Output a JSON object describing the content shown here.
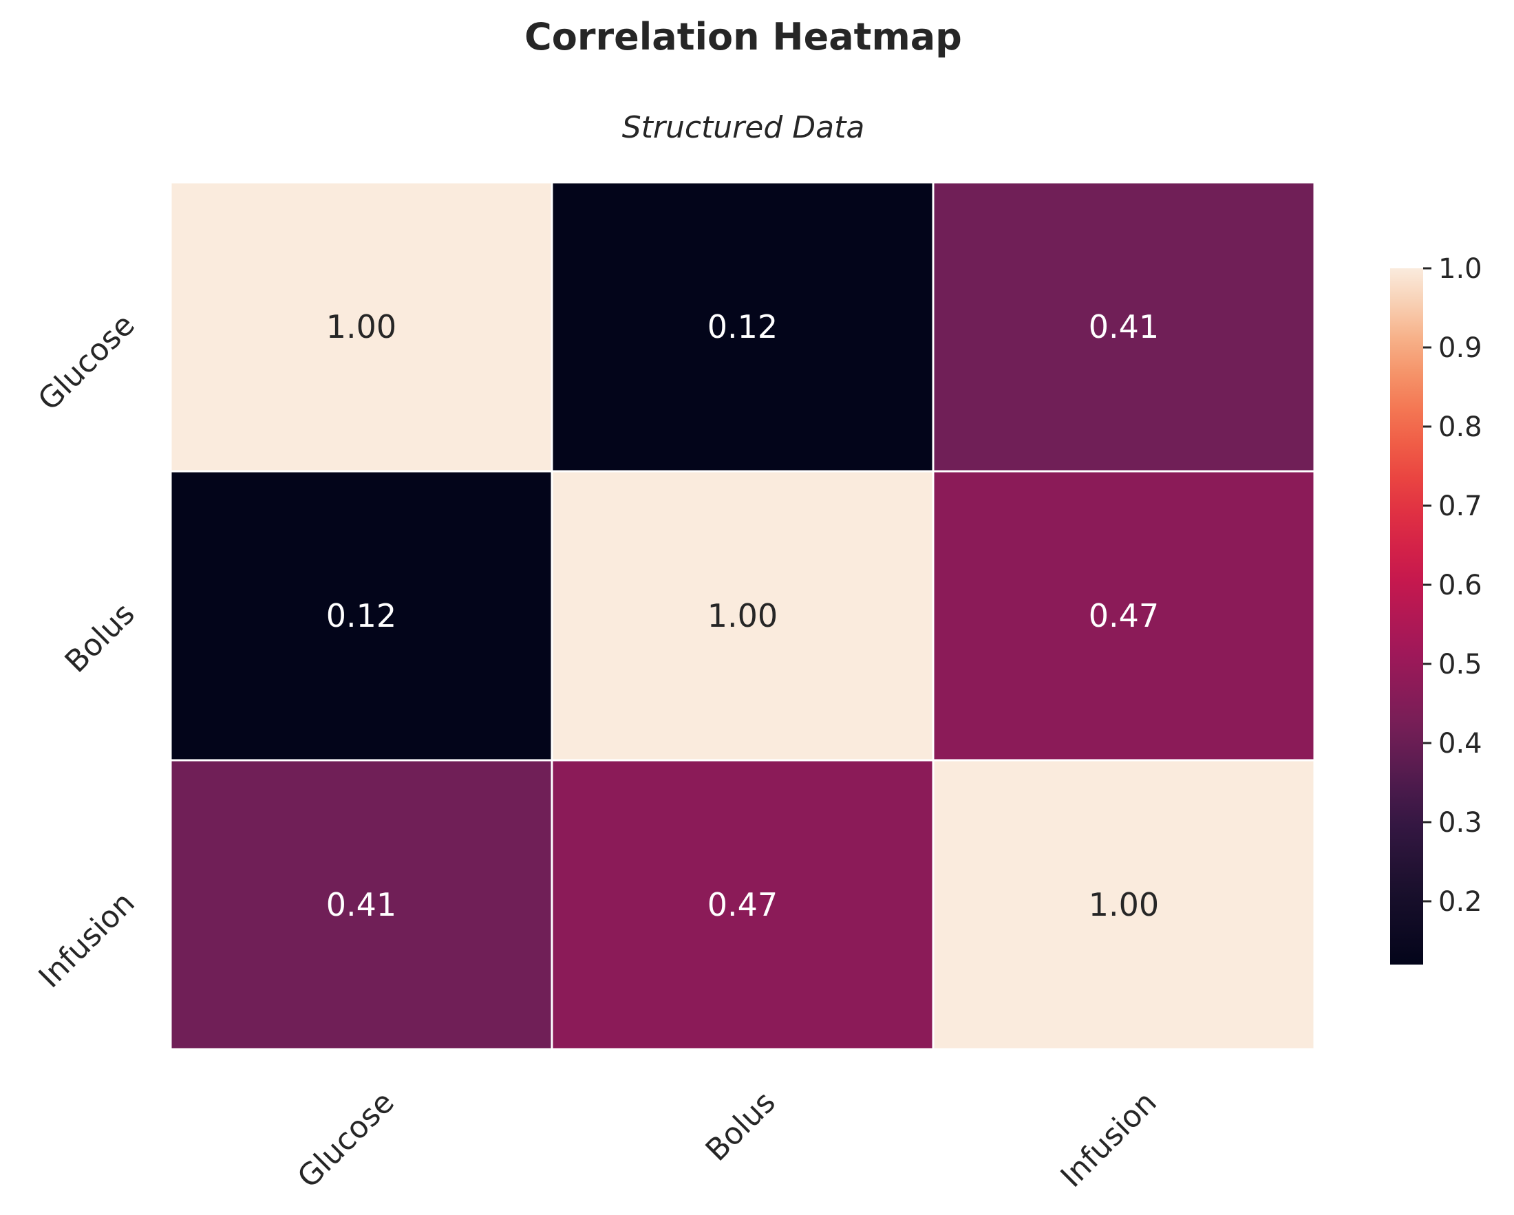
{
  "chart_data": {
    "type": "heatmap",
    "title": "Correlation Heatmap",
    "subtitle": "Structured Data",
    "x_categories": [
      "Glucose",
      "Bolus",
      "Infusion"
    ],
    "y_categories": [
      "Glucose",
      "Bolus",
      "Infusion"
    ],
    "values": [
      [
        1.0,
        0.12,
        0.41
      ],
      [
        0.12,
        1.0,
        0.47
      ],
      [
        0.41,
        0.47,
        1.0
      ]
    ],
    "value_format": "2 decimals",
    "colormap": "rocket",
    "colorbar": {
      "range": [
        0.12,
        1.0
      ],
      "ticks": [
        "0.2",
        "0.3",
        "0.4",
        "0.5",
        "0.6",
        "0.7",
        "0.8",
        "0.9",
        "1.0"
      ],
      "placement": "right"
    },
    "grid_line_color": "#ffffff",
    "tick_label_rotation_deg": 45
  }
}
